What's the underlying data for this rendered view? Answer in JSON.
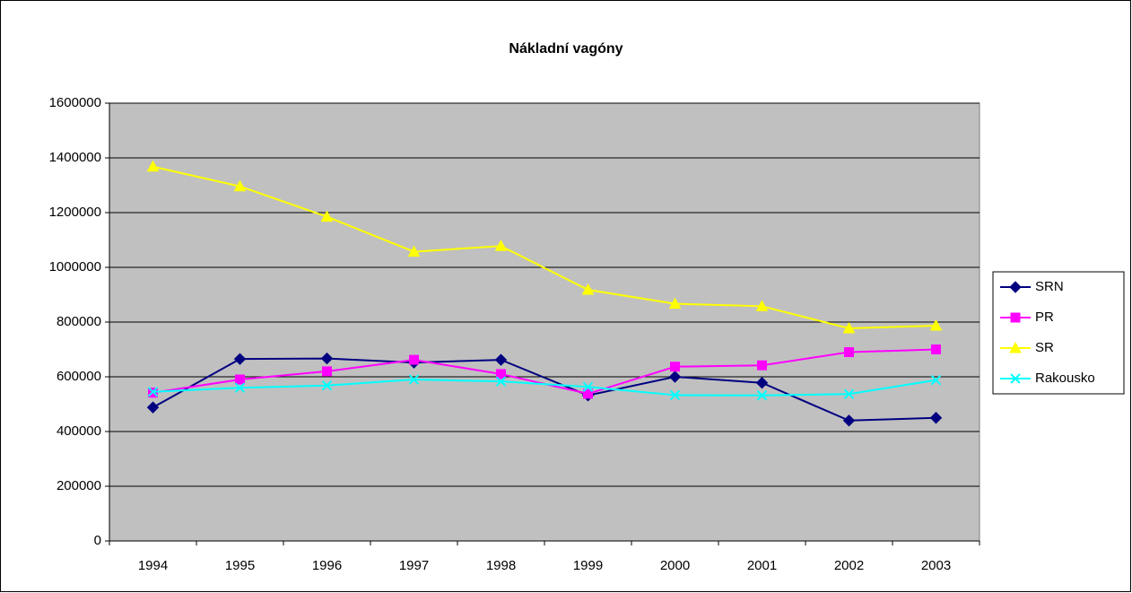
{
  "chart_data": {
    "type": "line",
    "title": "Nákladní vagóny",
    "categories": [
      "1994",
      "1995",
      "1996",
      "1997",
      "1998",
      "1999",
      "2000",
      "2001",
      "2002",
      "2003"
    ],
    "series": [
      {
        "name": "SRN",
        "color": "#000080",
        "marker": "diamond",
        "values": [
          488000,
          665000,
          667000,
          652000,
          662000,
          532000,
          600000,
          578000,
          440000,
          450000
        ]
      },
      {
        "name": "PR",
        "color": "#ff00ff",
        "marker": "square",
        "values": [
          542000,
          590000,
          620000,
          662000,
          610000,
          538000,
          637000,
          642000,
          690000,
          700000
        ]
      },
      {
        "name": "SR",
        "color": "#ffff00",
        "marker": "triangle",
        "values": [
          1368000,
          1296000,
          1185000,
          1057000,
          1078000,
          918000,
          867000,
          858000,
          777000,
          787000
        ]
      },
      {
        "name": "Rakousko",
        "color": "#00ffff",
        "marker": "x",
        "values": [
          545000,
          560000,
          568000,
          590000,
          583000,
          563000,
          533000,
          532000,
          537000,
          588000
        ]
      }
    ],
    "ylim": [
      0,
      1600000
    ],
    "yticks": [
      0,
      200000,
      400000,
      600000,
      800000,
      1000000,
      1200000,
      1400000,
      1600000
    ],
    "grid": true,
    "legend": "right"
  }
}
